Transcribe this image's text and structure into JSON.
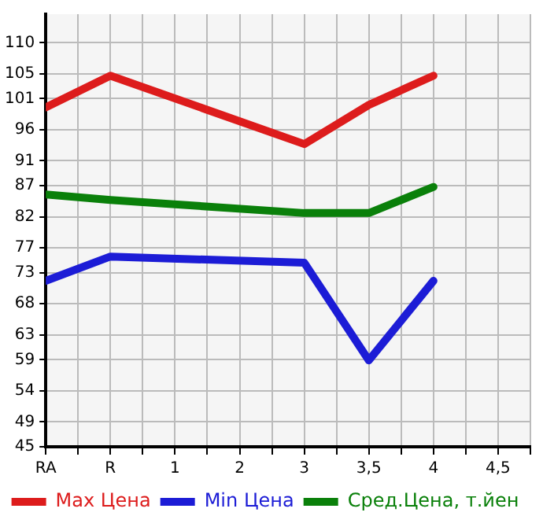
{
  "chart_data": {
    "type": "line",
    "categories": [
      "RA",
      "R",
      "1",
      "2",
      "3",
      "3,5",
      "4",
      "4,5"
    ],
    "series": [
      {
        "name": "Max Цена",
        "color": "#dd1c1c",
        "values": [
          99.6,
          104.7,
          null,
          null,
          93.7,
          100.0,
          104.7,
          null
        ]
      },
      {
        "name": "Min Цена",
        "color": "#1c1cd6",
        "values": [
          71.7,
          75.6,
          null,
          null,
          74.6,
          58.9,
          71.7,
          null
        ]
      },
      {
        "name": "Сред.Цена, т.йен",
        "color": "#0a800a",
        "values": [
          85.6,
          84.7,
          null,
          null,
          82.6,
          82.6,
          86.8,
          null
        ]
      }
    ],
    "ylim": [
      45,
      114.6
    ],
    "yticks": [
      45,
      49,
      54,
      59,
      63,
      68,
      73,
      77,
      82,
      87,
      91,
      96,
      101,
      105,
      110
    ],
    "grid": true,
    "legend": "bottom",
    "marker": "none",
    "line_style": "solid"
  }
}
